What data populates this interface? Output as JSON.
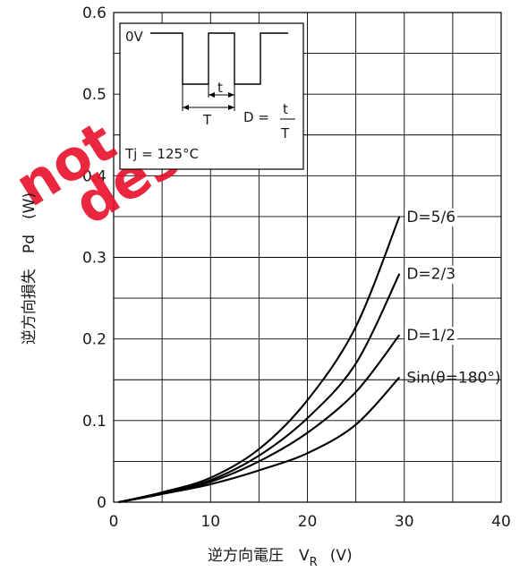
{
  "chart_data": {
    "type": "line",
    "xlabel": {
      "main": "逆方向電圧　V",
      "sub": "R",
      "unit": "(V)"
    },
    "ylabel": "逆方向損失　Pd　(W)",
    "xlim": [
      0,
      40
    ],
    "ylim": [
      0,
      0.6
    ],
    "x_ticks": [
      0,
      10,
      20,
      30,
      40
    ],
    "x_tick_labels": [
      "0",
      "10",
      "20",
      "30",
      "40"
    ],
    "x_gridlines": [
      5,
      10,
      15,
      20,
      25,
      30,
      35,
      40
    ],
    "y_ticks": [
      0,
      0.1,
      0.2,
      0.3,
      0.4,
      0.5,
      0.6
    ],
    "y_tick_labels": [
      "0",
      "0.1",
      "0.2",
      "0.3",
      "0.4",
      "0.5",
      "0.6"
    ],
    "y_gridlines": [
      0.05,
      0.1,
      0.15,
      0.2,
      0.25,
      0.3,
      0.35,
      0.4,
      0.45,
      0.5,
      0.55,
      0.6
    ],
    "grid": true,
    "series": [
      {
        "name": "D=5/6",
        "x": [
          0.5,
          5,
          10,
          15,
          20,
          25,
          29.5
        ],
        "y": [
          0,
          0.012,
          0.03,
          0.065,
          0.125,
          0.215,
          0.35
        ]
      },
      {
        "name": "D=2/3",
        "x": [
          0.5,
          5,
          10,
          15,
          20,
          25,
          29.5
        ],
        "y": [
          0,
          0.011,
          0.027,
          0.057,
          0.103,
          0.17,
          0.28
        ]
      },
      {
        "name": "D=1/2",
        "x": [
          0.5,
          5,
          10,
          15,
          20,
          25,
          29.5
        ],
        "y": [
          0,
          0.01,
          0.025,
          0.05,
          0.085,
          0.135,
          0.205
        ]
      },
      {
        "name": "Sin(θ=180°)",
        "x": [
          0.5,
          5,
          10,
          15,
          20,
          25,
          29.5
        ],
        "y": [
          0,
          0.01,
          0.022,
          0.039,
          0.06,
          0.095,
          0.153
        ]
      }
    ],
    "inset": {
      "zero_label": "0V",
      "t_label": "t",
      "T_label": "T",
      "formula_lhs": "D =",
      "formula_num": "t",
      "formula_den": "T",
      "condition": "Tj = 125°C"
    },
    "watermark": "not recommended for new design"
  }
}
